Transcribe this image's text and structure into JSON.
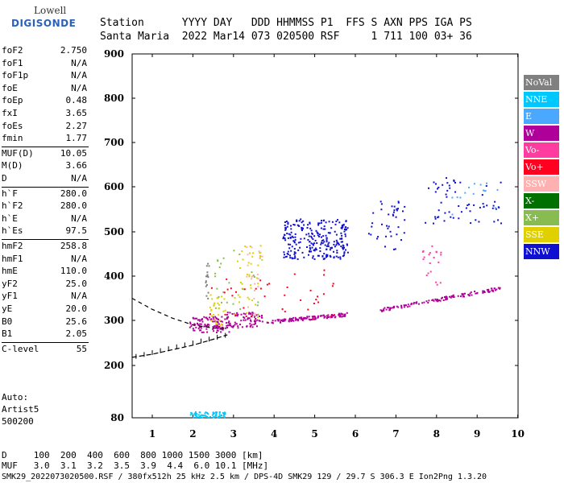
{
  "logo": {
    "line1": "Lowell",
    "line2": "DIGISONDE"
  },
  "header": {
    "line1": "Station      YYYY DAY   DDD HHMMSS P1  FFS S AXN PPS IGA PS",
    "line2": "Santa Maria  2022 Mar14 073 020500 RSF     1 711 100 03+ 36"
  },
  "params": [
    {
      "k": "foF2",
      "v": "2.750"
    },
    {
      "k": "foF1",
      "v": "N/A"
    },
    {
      "k": "foF1p",
      "v": "N/A"
    },
    {
      "k": "foE",
      "v": "N/A"
    },
    {
      "k": "foEp",
      "v": "0.48"
    },
    {
      "k": "fxI",
      "v": "3.65"
    },
    {
      "k": "foEs",
      "v": "2.27"
    },
    {
      "k": "fmin",
      "v": "1.77"
    },
    {
      "k": "MUF(D)",
      "v": "10.05"
    },
    {
      "k": "M(D)",
      "v": "3.66"
    },
    {
      "k": "D",
      "v": "N/A"
    },
    {
      "k": "h`F",
      "v": "280.0"
    },
    {
      "k": "h`F2",
      "v": "280.0"
    },
    {
      "k": "h`E",
      "v": "N/A"
    },
    {
      "k": "h`Es",
      "v": "97.5"
    },
    {
      "k": "hmF2",
      "v": "258.8"
    },
    {
      "k": "hmF1",
      "v": "N/A"
    },
    {
      "k": "hmE",
      "v": "110.0"
    },
    {
      "k": "yF2",
      "v": "25.0"
    },
    {
      "k": "yF1",
      "v": "N/A"
    },
    {
      "k": "yE",
      "v": "20.0"
    },
    {
      "k": "B0",
      "v": "25.6"
    },
    {
      "k": "B1",
      "v": "2.05"
    },
    {
      "k": "C-level",
      "v": "55"
    }
  ],
  "auto": {
    "label": "Auto:",
    "name": "Artist5",
    "ver": "500200"
  },
  "legend": [
    {
      "label": "NoVal",
      "color": "#808080"
    },
    {
      "label": "NNE",
      "color": "#00c8ff"
    },
    {
      "label": "E",
      "color": "#4aa8ff"
    },
    {
      "label": "W",
      "color": "#b0009a"
    },
    {
      "label": "Vo-",
      "color": "#ff3ca0"
    },
    {
      "label": "Vo+",
      "color": "#ff0020"
    },
    {
      "label": "SSW",
      "color": "#ffb0b0"
    },
    {
      "label": "X-",
      "color": "#007000"
    },
    {
      "label": "X+",
      "color": "#88bb50"
    },
    {
      "label": "SSE",
      "color": "#e0d000"
    },
    {
      "label": "NNW",
      "color": "#1010d0"
    }
  ],
  "footer": {
    "line1": "D     100  200  400  600  800 1000 1500 3000 [km]",
    "line2": "MUF   3.0  3.1  3.2  3.5  3.9  4.4  6.0 10.1 [MHz]",
    "line3": "SMK29_2022073020500.RSF / 380fx512h 25 kHz 2.5 km / DPS-4D SMK29 129 / 29.7 S 306.3 E Ion2Png 1.3.20"
  },
  "chart_data": {
    "type": "scatter",
    "xlabel": "",
    "ylabel": "",
    "xlim": [
      0.5,
      10
    ],
    "ylim": [
      80,
      900
    ],
    "xticks": [
      1,
      2,
      3,
      4,
      5,
      6,
      7,
      8,
      9,
      10
    ],
    "yticks": [
      80,
      200,
      300,
      400,
      500,
      600,
      700,
      800,
      900
    ],
    "clusters": [
      {
        "series": "W",
        "x": [
          1.9,
          2.9
        ],
        "y": [
          275,
          310
        ],
        "n": 110
      },
      {
        "series": "W",
        "x": [
          2.8,
          3.7
        ],
        "y": [
          285,
          320
        ],
        "n": 80
      },
      {
        "series": "W",
        "x": [
          3.8,
          5.8
        ],
        "y": [
          298,
          315
        ],
        "n": 120
      },
      {
        "series": "W",
        "x": [
          6.6,
          9.6
        ],
        "y": [
          325,
          375
        ],
        "n": 120
      },
      {
        "series": "NNW",
        "x": [
          4.2,
          5.8
        ],
        "y": [
          440,
          530
        ],
        "n": 260
      },
      {
        "series": "NNW",
        "x": [
          6.3,
          7.2
        ],
        "y": [
          460,
          580
        ],
        "n": 40
      },
      {
        "series": "NNW",
        "x": [
          7.7,
          9.6
        ],
        "y": [
          520,
          625
        ],
        "n": 60
      },
      {
        "series": "NNE",
        "x": [
          1.9,
          2.8
        ],
        "y": [
          82,
          95
        ],
        "n": 70
      },
      {
        "series": "SSE",
        "x": [
          2.4,
          2.8
        ],
        "y": [
          290,
          360
        ],
        "n": 30
      },
      {
        "series": "SSE",
        "x": [
          3.0,
          3.7
        ],
        "y": [
          300,
          480
        ],
        "n": 40
      },
      {
        "series": "SSW",
        "x": [
          3.3,
          3.7
        ],
        "y": [
          310,
          490
        ],
        "n": 20
      },
      {
        "series": "X+",
        "x": [
          2.5,
          3.6
        ],
        "y": [
          300,
          460
        ],
        "n": 25
      },
      {
        "series": "Vo+",
        "x": [
          2.4,
          5.8
        ],
        "y": [
          300,
          420
        ],
        "n": 40
      },
      {
        "series": "Vo-",
        "x": [
          7.6,
          8.1
        ],
        "y": [
          380,
          470
        ],
        "n": 20
      },
      {
        "series": "NoVal",
        "x": [
          2.3,
          2.4
        ],
        "y": [
          350,
          430
        ],
        "n": 15
      },
      {
        "series": "E",
        "x": [
          8.3,
          9.5
        ],
        "y": [
          540,
          610
        ],
        "n": 15
      }
    ],
    "profile_dashed": {
      "x": [
        0.5,
        1.0,
        1.5,
        2.0,
        2.5,
        2.85
      ],
      "y": [
        350,
        325,
        305,
        290,
        283,
        282
      ]
    },
    "trace_hdash": {
      "x": [
        0.5,
        1.0,
        1.5,
        2.0,
        2.5,
        2.85
      ],
      "y": [
        218,
        225,
        235,
        245,
        258,
        268
      ]
    }
  }
}
